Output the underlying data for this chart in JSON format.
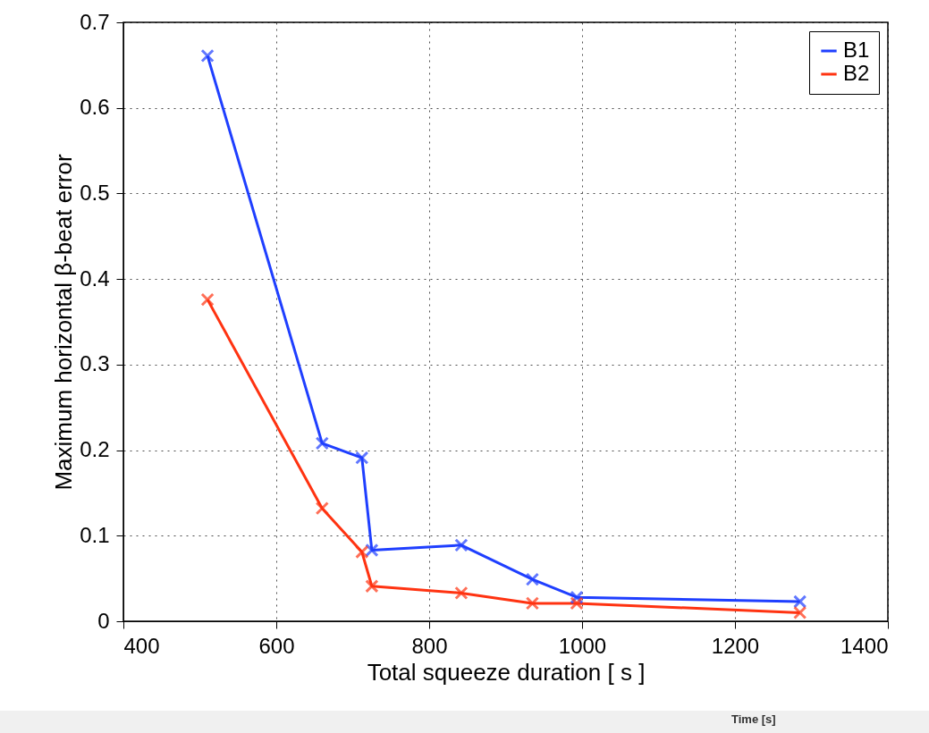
{
  "chart_data": {
    "type": "line",
    "xlabel": "Total squeeze duration [ s ]",
    "ylabel": "Maximum horizontal β-beat error",
    "x": [
      510,
      660,
      712,
      725,
      842,
      935,
      993,
      1285
    ],
    "series": [
      {
        "name": "B1",
        "color": "#1f3fff",
        "values": [
          0.661,
          0.208,
          0.191,
          0.083,
          0.089,
          0.049,
          0.028,
          0.023
        ]
      },
      {
        "name": "B2",
        "color": "#ff3311",
        "values": [
          0.376,
          0.132,
          0.081,
          0.041,
          0.033,
          0.021,
          0.021,
          0.01
        ]
      }
    ],
    "xlim": [
      400,
      1400
    ],
    "xticks": [
      400,
      600,
      800,
      1000,
      1200,
      1400
    ],
    "ylim": [
      0,
      0.7
    ],
    "yticks": [
      0,
      0.1,
      0.2,
      0.3,
      0.4,
      0.5,
      0.6,
      0.7
    ],
    "grid": true,
    "legend": "top right",
    "marker": "cross",
    "line_style": "solid",
    "annotations": [
      "Time [s]"
    ]
  }
}
